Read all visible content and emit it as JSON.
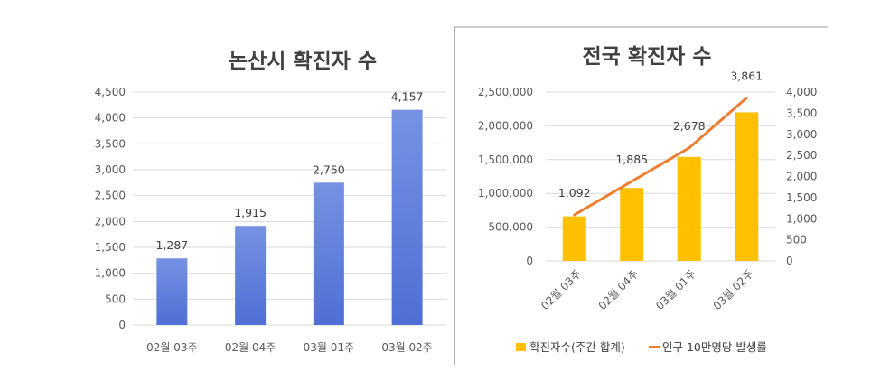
{
  "chart_data": [
    {
      "type": "bar",
      "title": "논산시 확진자 수",
      "categories": [
        "02월 03주",
        "02월 04주",
        "03월 01주",
        "03월 02주"
      ],
      "values": [
        1287,
        1915,
        2750,
        4157
      ],
      "data_labels": [
        "1,287",
        "1,915",
        "2,750",
        "4,157"
      ],
      "ylim": [
        0,
        4500
      ],
      "yticks": [
        "0",
        "500",
        "1,000",
        "1,500",
        "2,000",
        "2,500",
        "3,000",
        "3,500",
        "4,000",
        "4,500"
      ],
      "grid": true,
      "bar_color": "#5b7fdc"
    },
    {
      "type": "bar+line",
      "title": "전국 확진자 수",
      "categories": [
        "02월 03주",
        "02월 04주",
        "03월 01주",
        "03월 02주"
      ],
      "series": [
        {
          "name": "확진자수(주간 합계)",
          "type": "bar",
          "axis": "left",
          "values": [
            660000,
            1080000,
            1540000,
            2200000
          ],
          "color": "#ffc000"
        },
        {
          "name": "인구 10만명당 발생률",
          "type": "line",
          "axis": "right",
          "values": [
            1092,
            1885,
            2678,
            3861
          ],
          "data_labels": [
            "1,092",
            "1,885",
            "2,678",
            "3,861"
          ],
          "color": "#ed7d31"
        }
      ],
      "ylim_left": [
        0,
        2500000
      ],
      "yticks_left": [
        "0",
        "500,000",
        "1,000,000",
        "1,500,000",
        "2,000,000",
        "2,500,000"
      ],
      "ylim_right": [
        0,
        4000
      ],
      "yticks_right": [
        "0",
        "500",
        "1,000",
        "1,500",
        "2,000",
        "2,500",
        "3,000",
        "3,500",
        "4,000"
      ],
      "grid": true,
      "legend_position": "bottom"
    }
  ]
}
